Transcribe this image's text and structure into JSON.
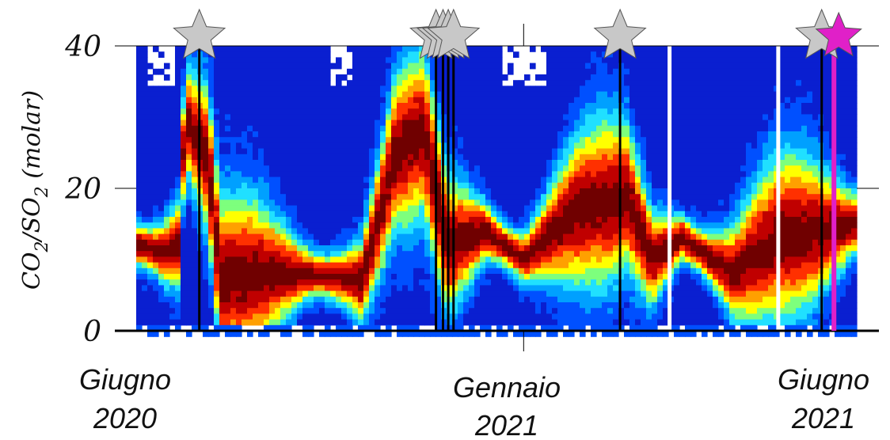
{
  "chart_data": {
    "type": "heatmap",
    "title": "",
    "ylabel": {
      "parts": [
        "CO",
        "2",
        "/SO",
        "2",
        " (molar)"
      ]
    },
    "y_ticks": [
      "0",
      "20",
      "40"
    ],
    "ylim": [
      0,
      40
    ],
    "x_start": "2020-05-25",
    "x_end": "2021-07-10",
    "x_ticks": [
      {
        "date": "2020-06-15",
        "lines": [
          "Giugno",
          "2020"
        ]
      },
      {
        "date": "2021-01-01",
        "lines": [
          "Gennaio",
          "2021"
        ]
      },
      {
        "date": "2021-06-15",
        "lines": [
          "Giugno",
          "2021"
        ]
      }
    ],
    "colormap": [
      "#0a1fd0",
      "#0050ff",
      "#00a0ff",
      "#20e0ff",
      "#7dff7d",
      "#ffff00",
      "#ffa000",
      "#ff3000",
      "#c00000",
      "#700000"
    ],
    "description_ridge": [
      {
        "date": "2020-05-25",
        "mode": 12
      },
      {
        "date": "2020-06-10",
        "mode": 11
      },
      {
        "date": "2020-06-18",
        "mode": 12
      },
      {
        "date": "2020-06-22",
        "mode": 30
      },
      {
        "date": "2020-07-05",
        "mode": 24
      },
      {
        "date": "2020-07-12",
        "mode": 7
      },
      {
        "date": "2020-08-01",
        "mode": 8
      },
      {
        "date": "2020-09-01",
        "mode": 8
      },
      {
        "date": "2020-10-01",
        "mode": 7
      },
      {
        "date": "2020-10-20",
        "mode": 25
      },
      {
        "date": "2020-11-05",
        "mode": 28
      },
      {
        "date": "2020-11-18",
        "mode": 12
      },
      {
        "date": "2020-12-10",
        "mode": 14
      },
      {
        "date": "2021-01-01",
        "mode": 10
      },
      {
        "date": "2021-02-01",
        "mode": 17
      },
      {
        "date": "2021-03-01",
        "mode": 19
      },
      {
        "date": "2021-03-15",
        "mode": 10
      },
      {
        "date": "2021-04-01",
        "mode": 13
      },
      {
        "date": "2021-05-01",
        "mode": 8
      },
      {
        "date": "2021-05-25",
        "mode": 13
      },
      {
        "date": "2021-07-10",
        "mode": 15
      }
    ],
    "white_gaps": [
      "2021-03-25",
      "2021-05-26"
    ],
    "events_grey": [
      "2020-06-30",
      "2020-11-12",
      "2020-11-16",
      "2020-11-19",
      "2020-11-22",
      "2021-02-25",
      "2021-06-20"
    ],
    "events_magenta": [
      "2021-06-27"
    ],
    "colors": {
      "grey_star": "#c8c8c8",
      "magenta": "#e020c8",
      "event_line": "#000000"
    }
  }
}
